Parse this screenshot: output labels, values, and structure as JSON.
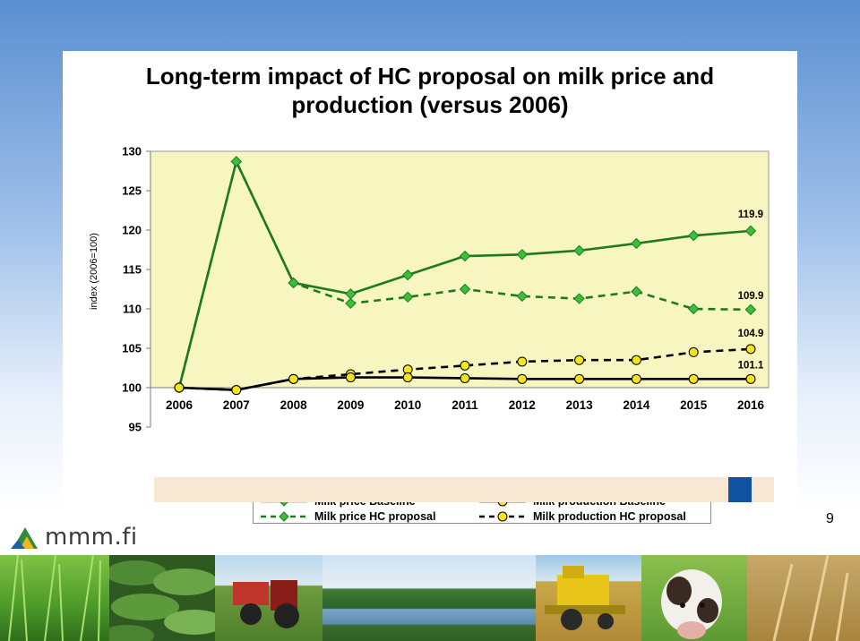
{
  "chart_data": {
    "type": "line",
    "title": "Long-term impact of HC proposal on milk price and production (versus 2006)",
    "title_lines": [
      "Long-term impact of HC proposal on milk price and",
      "production (versus 2006)"
    ],
    "ylabel": "index (2006=100)",
    "xlabel": "",
    "categories": [
      "2006",
      "2007",
      "2008",
      "2009",
      "2010",
      "2011",
      "2012",
      "2013",
      "2014",
      "2015",
      "2016"
    ],
    "ylim": [
      95,
      130
    ],
    "yticks": [
      95,
      100,
      105,
      110,
      115,
      120,
      125,
      130
    ],
    "grid": false,
    "legend_position": "bottom",
    "series": [
      {
        "name": "Milk price Baseline",
        "style": "solid",
        "marker": "diamond",
        "color": "#1f7a1f",
        "values": [
          100,
          128.7,
          113.3,
          111.9,
          114.3,
          116.7,
          116.9,
          117.4,
          118.3,
          119.3,
          119.9
        ]
      },
      {
        "name": "Milk price HC proposal",
        "style": "dashed",
        "marker": "diamond",
        "color": "#1f7a1f",
        "values": [
          100,
          128.7,
          113.3,
          110.7,
          111.5,
          112.5,
          111.6,
          111.3,
          112.2,
          110.0,
          109.9
        ]
      },
      {
        "name": "Milk production Baseline",
        "style": "solid",
        "marker": "circle",
        "color": "#000000",
        "values": [
          100,
          99.7,
          101.1,
          101.3,
          101.3,
          101.2,
          101.1,
          101.1,
          101.1,
          101.1,
          101.1
        ]
      },
      {
        "name": "Milk production HC proposal",
        "style": "dashed",
        "marker": "circle",
        "color": "#000000",
        "values": [
          100,
          99.7,
          101.1,
          101.7,
          102.3,
          102.8,
          103.3,
          103.5,
          103.5,
          104.5,
          104.9
        ]
      }
    ],
    "data_labels": [
      {
        "series": 0,
        "index": 10,
        "text": "119.9"
      },
      {
        "series": 1,
        "index": 10,
        "text": "109.9"
      },
      {
        "series": 3,
        "index": 10,
        "text": "104.9"
      },
      {
        "series": 2,
        "index": 10,
        "text": "101.1"
      }
    ]
  },
  "colors": {
    "plot_background": "#f8f6c0",
    "price_line": "#1f7a1f",
    "price_marker": "#3bbf3b",
    "production_marker": "#f5e320",
    "accent_box": "#0e52a0",
    "strip": "#f8e7d2"
  },
  "page_number": "9",
  "logo": {
    "text": "mmm.fi",
    "icon": "triangle-logo-icon"
  },
  "footer_photos": [
    "grass-photo",
    "cucumbers-photo",
    "tractor-photo",
    "lake-photo",
    "harvester-photo",
    "cow-photo",
    "wheat-photo"
  ]
}
